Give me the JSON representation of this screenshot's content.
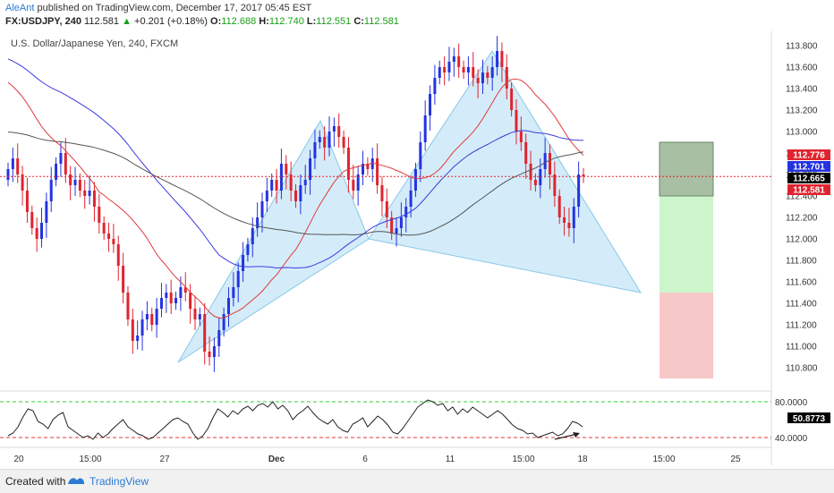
{
  "header": {
    "author": "AleAnt",
    "published": "published on TradingView.com, December 17, 2017 05:45 EST",
    "symbol": "FX:USDJPY, 240",
    "last": "112.581",
    "change": "+0.201 (+0.18%)",
    "o_label": "O:",
    "o_value": "112.688",
    "h_label": "H:",
    "h_value": "112.740",
    "l_label": "L:",
    "l_value": "112.551",
    "c_label": "C:",
    "c_value": "112.581"
  },
  "subtitle": "U.S. Dollar/Japanese Yen, 240, FXCM",
  "footer": {
    "created_with": "Created with",
    "brand": "TradingView"
  },
  "colors": {
    "up": "#2433e0",
    "down": "#e0242f",
    "ma_red": "#e03a3a",
    "ma_blue": "#3a3ae0",
    "ma_dark": "#555555",
    "pattern_fill": "#c6e6f7",
    "pattern_stroke": "#88c8e8",
    "target_dark": "#a9bfa3",
    "target_light": "#ccf5cc",
    "stop": "#f6c8c8"
  },
  "chart_data": {
    "type": "candlestick",
    "y_axis_labels": [
      "113.800",
      "113.600",
      "113.400",
      "113.200",
      "113.000",
      "112.800",
      "112.600",
      "112.400",
      "112.200",
      "112.000",
      "111.800",
      "111.600",
      "111.400",
      "111.200",
      "111.000",
      "110.800"
    ],
    "x_axis_labels": [
      "20",
      "15:00",
      "27",
      "Dec",
      "6",
      "11",
      "15:00",
      "18",
      "15:00",
      "25"
    ],
    "price_tags": [
      {
        "value": "112.776",
        "color": "#e0242f"
      },
      {
        "value": "112.701",
        "color": "#2433e0"
      },
      {
        "value": "112.665",
        "color": "#000000"
      },
      {
        "value": "112.581",
        "color": "#e0242f"
      }
    ],
    "current_price": 112.581,
    "pattern": {
      "X": {
        "t": "Nov 28",
        "price": 110.85
      },
      "A": {
        "t": "Dec 4",
        "price": 113.1
      },
      "B": {
        "t": "Dec 6",
        "price": 112.0
      },
      "C": {
        "t": "Dec 13",
        "price": 113.75
      },
      "D": {
        "t": "Dec 22",
        "price": 111.5
      }
    },
    "target_zone": {
      "upper": 112.9,
      "lower": 112.4
    },
    "profit_zone": {
      "upper": 112.4,
      "lower": 111.5
    },
    "stop_zone": {
      "upper": 111.5,
      "lower": 110.7
    },
    "oscillator": {
      "levels": [
        "80.0000",
        "40.0000"
      ],
      "value": "50.8773"
    }
  }
}
